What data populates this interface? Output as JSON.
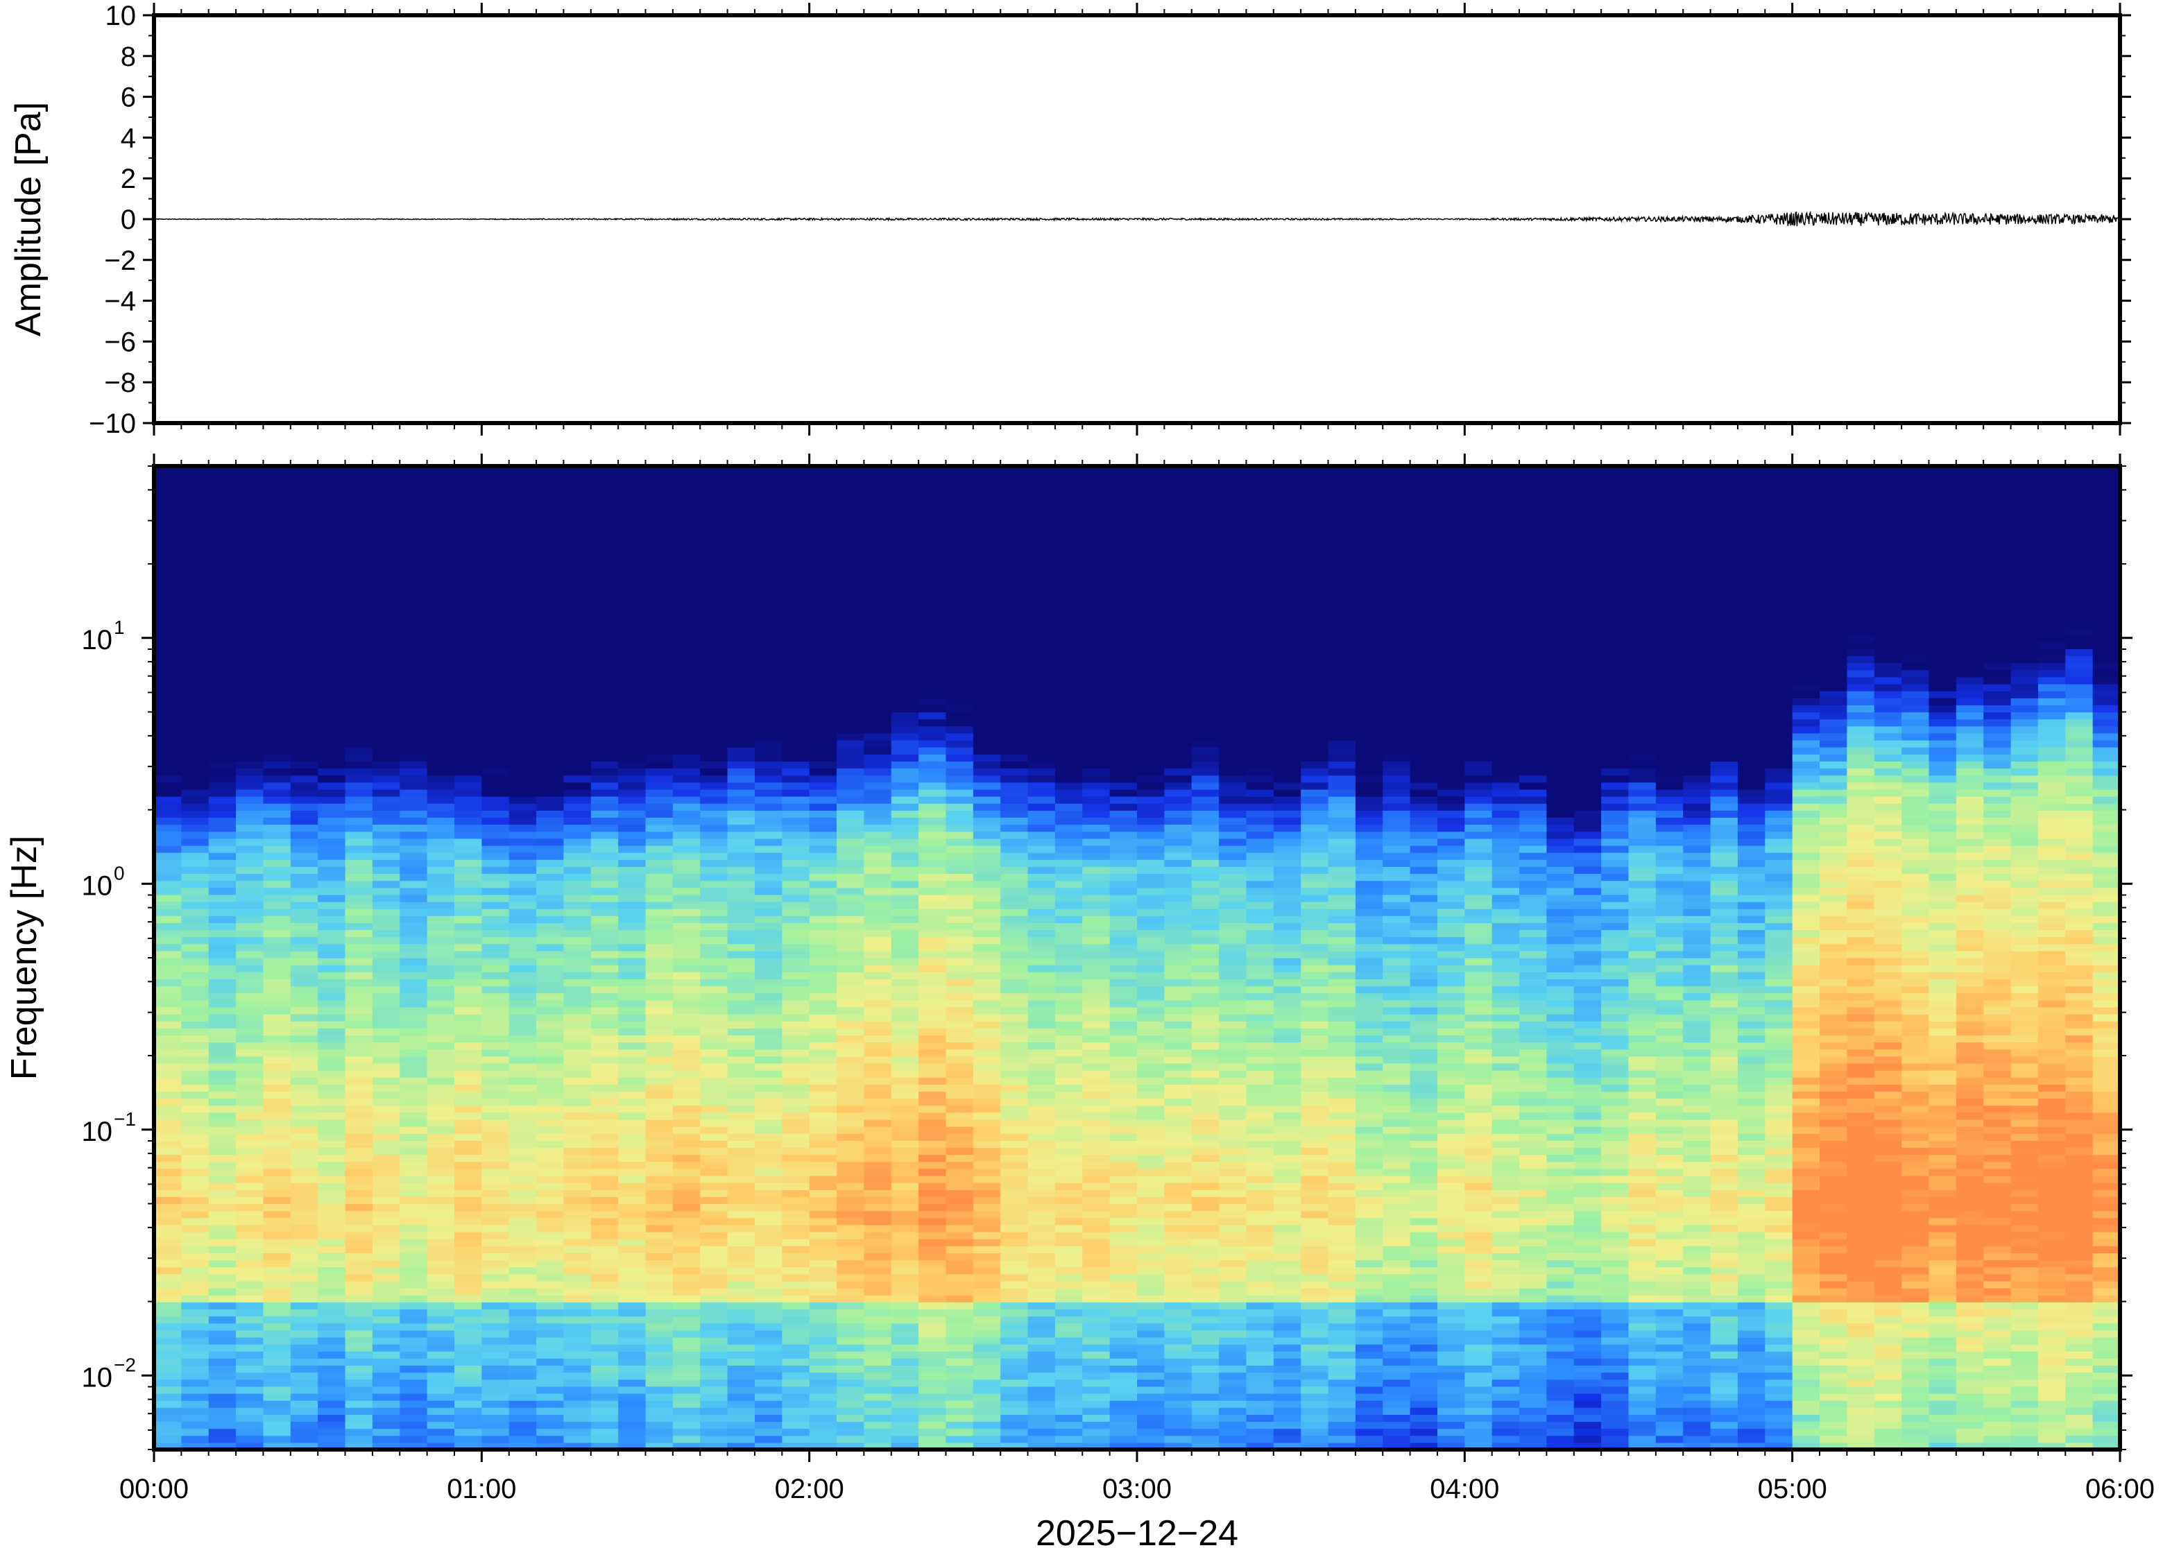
{
  "chart_data": [
    {
      "type": "line",
      "panel": "waveform",
      "ylabel": "Amplitude [Pa]",
      "ylim": [
        -10,
        10
      ],
      "yticks": [
        10,
        8,
        6,
        4,
        2,
        0,
        -2,
        -4,
        -6,
        -8,
        -10
      ],
      "ytick_labels": [
        "10",
        "8",
        "6",
        "4",
        "2",
        "0",
        "−2",
        "−4",
        "−6",
        "−8",
        "−10"
      ],
      "xlim": [
        "00:00",
        "06:00"
      ],
      "series": [
        {
          "color": "#000000",
          "x": [
            "00:00",
            "01:00",
            "02:00",
            "03:00",
            "04:00",
            "04:50",
            "05:00",
            "05:30",
            "06:00"
          ],
          "y": [
            0,
            0,
            0,
            0,
            0,
            0,
            0,
            0,
            0
          ],
          "envelope": [
            0.02,
            0.02,
            0.05,
            0.05,
            0.03,
            0.15,
            0.35,
            0.3,
            0.2
          ]
        }
      ],
      "grid": false
    },
    {
      "type": "heatmap",
      "panel": "spectrogram",
      "ylabel": "Frequency [Hz]",
      "xlabel": "2025−12−24",
      "yscale": "log",
      "ylim": [
        0.005,
        50
      ],
      "yticks": [
        0.01,
        0.1,
        1,
        10
      ],
      "ytick_labels": [
        [
          "10",
          "−2"
        ],
        [
          "10",
          "−1"
        ],
        [
          "10",
          "0"
        ],
        [
          "10",
          "1"
        ]
      ],
      "xlim": [
        "00:00",
        "06:00"
      ],
      "xtick_labels": [
        "00:00",
        "01:00",
        "02:00",
        "03:00",
        "04:00",
        "05:00",
        "06:00"
      ],
      "colormap": [
        "#0a0a78",
        "#1432e6",
        "#2d8cff",
        "#5ad2f0",
        "#a0f0a0",
        "#f0f08c",
        "#ffc864",
        "#ff8c46"
      ],
      "column_hours": 0.0833,
      "column_floor_hz": [
        2.4,
        2.9,
        3.7,
        3.8,
        3.3,
        3.2,
        3.8,
        3.4,
        3.6,
        4.0,
        3.2,
        3.0,
        2.8,
        2.6,
        2.7,
        3.0,
        3.3,
        3.2,
        3.0,
        3.2,
        3.4,
        4.5,
        4.2,
        3.6,
        3.1,
        3.7,
        3.3,
        4.8,
        4.4,
        3.8,
        3.3,
        3.2,
        3.4,
        3.3,
        2.8,
        3.0,
        3.2,
        3.6,
        3.9,
        2.9,
        3.1,
        3.0,
        3.7,
        4.5,
        3.5,
        4.2,
        3.8,
        3.1,
        3.4,
        3.6,
        3.9,
        2.6,
        3.0,
        4.3,
        4.0,
        3.6,
        3.6,
        3.9,
        3.2,
        3.7,
        5.1,
        4.4,
        6.2,
        5.8,
        6.4,
        5.5,
        5.7,
        5.3,
        6.4,
        7.0,
        8.2,
        6.1
      ],
      "column_intensity": [
        0.55,
        0.5,
        0.45,
        0.5,
        0.55,
        0.5,
        0.45,
        0.55,
        0.5,
        0.45,
        0.5,
        0.55,
        0.5,
        0.48,
        0.5,
        0.52,
        0.55,
        0.5,
        0.58,
        0.6,
        0.55,
        0.52,
        0.5,
        0.55,
        0.58,
        0.62,
        0.65,
        0.6,
        0.7,
        0.68,
        0.62,
        0.55,
        0.5,
        0.52,
        0.55,
        0.5,
        0.48,
        0.5,
        0.52,
        0.5,
        0.48,
        0.45,
        0.52,
        0.5,
        0.4,
        0.42,
        0.38,
        0.45,
        0.5,
        0.44,
        0.42,
        0.38,
        0.35,
        0.4,
        0.48,
        0.45,
        0.42,
        0.5,
        0.42,
        0.48,
        0.72,
        0.78,
        0.82,
        0.8,
        0.75,
        0.7,
        0.78,
        0.76,
        0.74,
        0.8,
        0.78,
        0.7
      ],
      "legend": null,
      "grid": false
    }
  ]
}
